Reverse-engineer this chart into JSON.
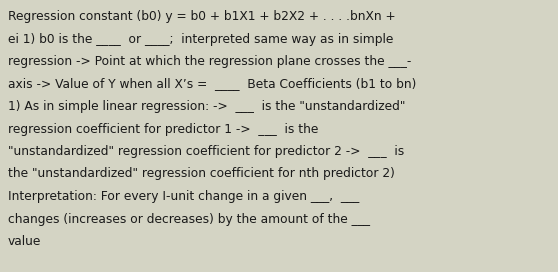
{
  "background_color": "#d4d4c4",
  "text_color": "#1a1a1a",
  "font_size": 8.8,
  "font_family": "DejaVu Sans",
  "lines": [
    "Regression constant (b0) y = b0 + b1X1 + b2X2 + . . . .bnXn +",
    "ei 1) b0 is the ____  or ____;  interpreted same way as in simple",
    "regression -> Point at which the regression plane crosses the ___-",
    "axis -> Value of Y when all X’s =  ____  Beta Coefficients (b1 to bn)",
    "1) As in simple linear regression: ->  ___  is the \"unstandardized\"",
    "regression coefficient for predictor 1 ->  ___  is the",
    "\"unstandardized\" regression coefficient for predictor 2 ->  ___  is",
    "the \"unstandardized\" regression coefficient for nth predictor 2)",
    "Interpretation: For every I-unit change in a given ___,  ___",
    "changes (increases or decreases) by the amount of the ___",
    "value"
  ]
}
